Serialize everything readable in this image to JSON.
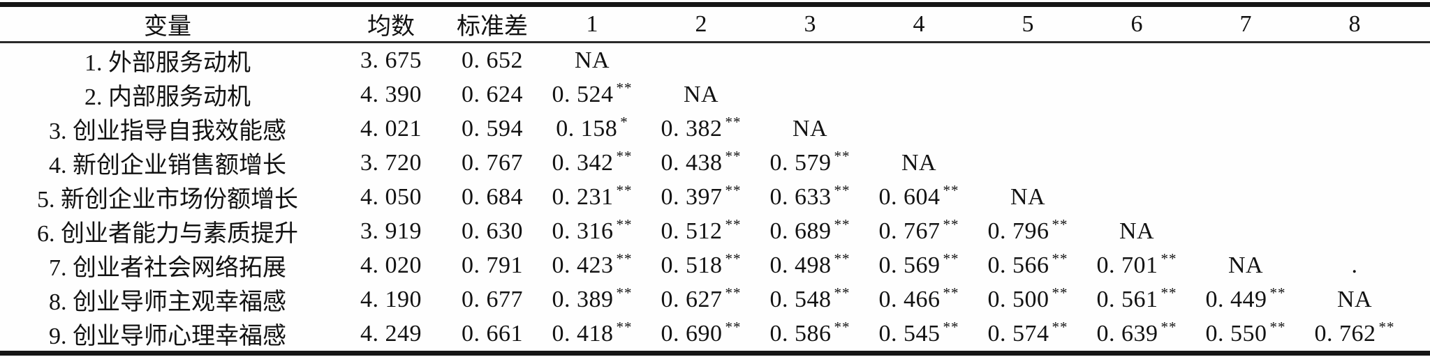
{
  "page": {
    "background": "#fefefe",
    "text_color": "#121212",
    "rule_color": "#161616",
    "kind": "correlation-matrix-table"
  },
  "table": {
    "columns": [
      "变量",
      "均数",
      "标准差",
      "1",
      "2",
      "3",
      "4",
      "5",
      "6",
      "7",
      "8"
    ],
    "rows": [
      {
        "variable": "1. 外部服务动机",
        "mean": "3. 675",
        "sd": "0. 652",
        "corr": [
          {
            "v": "NA"
          },
          {
            "v": ""
          },
          {
            "v": ""
          },
          {
            "v": ""
          },
          {
            "v": ""
          },
          {
            "v": ""
          },
          {
            "v": ""
          },
          {
            "v": ""
          }
        ]
      },
      {
        "variable": "2. 内部服务动机",
        "mean": "4. 390",
        "sd": "0. 624",
        "corr": [
          {
            "v": "0. 524",
            "s": "**"
          },
          {
            "v": "NA"
          },
          {
            "v": ""
          },
          {
            "v": ""
          },
          {
            "v": ""
          },
          {
            "v": ""
          },
          {
            "v": ""
          },
          {
            "v": ""
          }
        ]
      },
      {
        "variable": "3. 创业指导自我效能感",
        "mean": "4. 021",
        "sd": "0. 594",
        "corr": [
          {
            "v": "0. 158",
            "s": "*"
          },
          {
            "v": "0. 382",
            "s": "**"
          },
          {
            "v": "NA"
          },
          {
            "v": ""
          },
          {
            "v": ""
          },
          {
            "v": ""
          },
          {
            "v": ""
          },
          {
            "v": ""
          }
        ]
      },
      {
        "variable": "4. 新创企业销售额增长",
        "mean": "3. 720",
        "sd": "0. 767",
        "corr": [
          {
            "v": "0. 342",
            "s": "**"
          },
          {
            "v": "0. 438",
            "s": "**"
          },
          {
            "v": "0. 579",
            "s": "**"
          },
          {
            "v": "NA"
          },
          {
            "v": ""
          },
          {
            "v": ""
          },
          {
            "v": ""
          },
          {
            "v": ""
          }
        ]
      },
      {
        "variable": "5. 新创企业市场份额增长",
        "mean": "4. 050",
        "sd": "0. 684",
        "corr": [
          {
            "v": "0. 231",
            "s": "**"
          },
          {
            "v": "0. 397",
            "s": "**"
          },
          {
            "v": "0. 633",
            "s": "**"
          },
          {
            "v": "0. 604",
            "s": "**"
          },
          {
            "v": "NA"
          },
          {
            "v": ""
          },
          {
            "v": ""
          },
          {
            "v": ""
          }
        ]
      },
      {
        "variable": "6. 创业者能力与素质提升",
        "mean": "3. 919",
        "sd": "0. 630",
        "corr": [
          {
            "v": "0. 316",
            "s": "**"
          },
          {
            "v": "0. 512",
            "s": "**"
          },
          {
            "v": "0. 689",
            "s": "**"
          },
          {
            "v": "0. 767",
            "s": "**"
          },
          {
            "v": "0. 796",
            "s": "**"
          },
          {
            "v": "NA"
          },
          {
            "v": ""
          },
          {
            "v": ""
          }
        ]
      },
      {
        "variable": "7. 创业者社会网络拓展",
        "mean": "4. 020",
        "sd": "0. 791",
        "corr": [
          {
            "v": "0. 423",
            "s": "**"
          },
          {
            "v": "0. 518",
            "s": "**"
          },
          {
            "v": "0. 498",
            "s": "**"
          },
          {
            "v": "0. 569",
            "s": "**"
          },
          {
            "v": "0. 566",
            "s": "**"
          },
          {
            "v": "0. 701",
            "s": "**"
          },
          {
            "v": "NA"
          },
          {
            "v": "."
          }
        ]
      },
      {
        "variable": "8. 创业导师主观幸福感",
        "mean": "4. 190",
        "sd": "0. 677",
        "corr": [
          {
            "v": "0. 389",
            "s": "**"
          },
          {
            "v": "0. 627",
            "s": "**"
          },
          {
            "v": "0. 548",
            "s": "**"
          },
          {
            "v": "0. 466",
            "s": "**"
          },
          {
            "v": "0. 500",
            "s": "**"
          },
          {
            "v": "0. 561",
            "s": "**"
          },
          {
            "v": "0. 449",
            "s": "**"
          },
          {
            "v": "NA"
          }
        ]
      },
      {
        "variable": "9. 创业导师心理幸福感",
        "mean": "4. 249",
        "sd": "0. 661",
        "corr": [
          {
            "v": "0. 418",
            "s": "**"
          },
          {
            "v": "0. 690",
            "s": "**"
          },
          {
            "v": "0. 586",
            "s": "**"
          },
          {
            "v": "0. 545",
            "s": "**"
          },
          {
            "v": "0. 574",
            "s": "**"
          },
          {
            "v": "0. 639",
            "s": "**"
          },
          {
            "v": "0. 550",
            "s": "**"
          },
          {
            "v": "0. 762",
            "s": "**"
          }
        ]
      }
    ]
  }
}
